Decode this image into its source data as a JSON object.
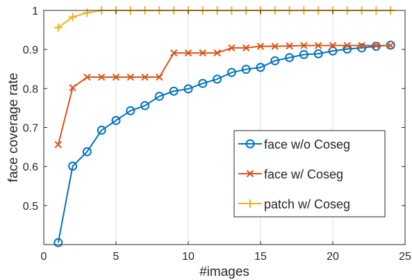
{
  "chart_data": {
    "type": "line",
    "xlabel": "#images",
    "ylabel": "face coverage rate",
    "xlim": [
      0,
      25
    ],
    "ylim": [
      0.4,
      1.0
    ],
    "xticks": [
      "0",
      "5",
      "10",
      "15",
      "20",
      "25"
    ],
    "yticks": [
      "0.5",
      "0.6",
      "0.7",
      "0.8",
      "0.9",
      "1"
    ],
    "grid": "vertical",
    "legend_position": "lower-right",
    "x": [
      1,
      2,
      3,
      4,
      5,
      6,
      7,
      8,
      9,
      10,
      11,
      12,
      13,
      14,
      15,
      16,
      17,
      18,
      19,
      20,
      21,
      22,
      23,
      24
    ],
    "series": [
      {
        "name": "face w/o Coseg",
        "color": "#0072BD",
        "marker": "circle",
        "values": [
          0.405,
          0.601,
          0.638,
          0.693,
          0.718,
          0.743,
          0.756,
          0.78,
          0.793,
          0.799,
          0.813,
          0.824,
          0.841,
          0.849,
          0.854,
          0.871,
          0.879,
          0.887,
          0.889,
          0.896,
          0.901,
          0.904,
          0.908,
          0.911
        ]
      },
      {
        "name": "face w/ Coseg",
        "color": "#D95319",
        "marker": "x",
        "values": [
          0.656,
          0.802,
          0.829,
          0.829,
          0.829,
          0.829,
          0.829,
          0.829,
          0.891,
          0.891,
          0.891,
          0.891,
          0.904,
          0.904,
          0.908,
          0.908,
          0.909,
          0.91,
          0.91,
          0.91,
          0.91,
          0.91,
          0.91,
          0.91
        ]
      },
      {
        "name": "patch w/ Coseg",
        "color": "#EDB120",
        "marker": "plus",
        "values": [
          0.956,
          0.983,
          0.994,
          1.0,
          1.0,
          1.0,
          1.0,
          1.0,
          1.0,
          1.0,
          1.0,
          1.0,
          1.0,
          1.0,
          1.0,
          1.0,
          1.0,
          1.0,
          1.0,
          1.0,
          1.0,
          1.0,
          1.0,
          1.0
        ]
      }
    ]
  }
}
